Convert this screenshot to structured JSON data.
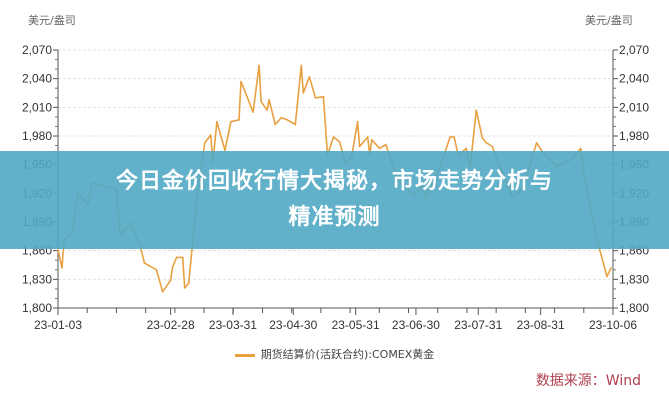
{
  "banner": {
    "title_line1": "今日金价回收行情大揭秘，市场走势分析与",
    "title_line2": "精准预测"
  },
  "source": "数据来源：Wind",
  "colors": {
    "line": "#e8a040",
    "banner": "#50a8c4",
    "source": "#b0404e"
  },
  "chart_data": {
    "type": "line",
    "title": "",
    "ylabel_left": "美元/盎司",
    "ylabel_right": "美元/盎司",
    "ylim": [
      1800,
      2070
    ],
    "yticks": [
      "1,800",
      "1,830",
      "1,860",
      "1,890",
      "1,920",
      "1,950",
      "1,980",
      "2,010",
      "2,040",
      "2,070"
    ],
    "xlim": [
      "2023-01-03",
      "2023-10-06"
    ],
    "xticks": [
      "23-01-03",
      "23-02-28",
      "23-03-31",
      "23-04-30",
      "23-05-31",
      "23-06-30",
      "23-07-31",
      "23-08-31",
      "23-10-06"
    ],
    "xtick_dates": [
      "2023-01-03",
      "2023-02-28",
      "2023-03-31",
      "2023-04-30",
      "2023-05-31",
      "2023-06-30",
      "2023-07-31",
      "2023-08-31",
      "2023-10-06"
    ],
    "grid": true,
    "legend_position": "bottom",
    "series": [
      {
        "name": "期货结算价(活跃合约):COMEX黄金",
        "x": [
          "2023-01-03",
          "2023-01-05",
          "2023-01-06",
          "2023-01-10",
          "2023-01-13",
          "2023-01-18",
          "2023-01-20",
          "2023-02-01",
          "2023-02-03",
          "2023-02-08",
          "2023-02-13",
          "2023-02-15",
          "2023-02-21",
          "2023-02-24",
          "2023-02-28",
          "2023-03-01",
          "2023-03-03",
          "2023-03-06",
          "2023-03-07",
          "2023-03-09",
          "2023-03-13",
          "2023-03-17",
          "2023-03-20",
          "2023-03-21",
          "2023-03-23",
          "2023-03-27",
          "2023-03-30",
          "2023-04-03",
          "2023-04-04",
          "2023-04-10",
          "2023-04-13",
          "2023-04-14",
          "2023-04-17",
          "2023-04-18",
          "2023-04-21",
          "2023-04-24",
          "2023-04-27",
          "2023-05-01",
          "2023-05-04",
          "2023-05-05",
          "2023-05-08",
          "2023-05-11",
          "2023-05-15",
          "2023-05-17",
          "2023-05-20",
          "2023-05-23",
          "2023-05-26",
          "2023-05-29",
          "2023-06-01",
          "2023-06-02",
          "2023-06-06",
          "2023-06-07",
          "2023-06-08",
          "2023-06-12",
          "2023-06-15",
          "2023-06-21",
          "2023-06-23",
          "2023-06-29",
          "2023-07-03",
          "2023-07-05",
          "2023-07-12",
          "2023-07-17",
          "2023-07-19",
          "2023-07-21",
          "2023-07-25",
          "2023-07-27",
          "2023-07-30",
          "2023-08-02",
          "2023-08-04",
          "2023-08-07",
          "2023-08-11",
          "2023-08-17",
          "2023-08-22",
          "2023-08-29",
          "2023-09-01",
          "2023-09-08",
          "2023-09-15",
          "2023-09-20",
          "2023-09-21",
          "2023-09-26",
          "2023-09-29",
          "2023-10-03",
          "2023-10-05"
        ],
        "values": [
          1861,
          1842,
          1871,
          1878,
          1920,
          1908,
          1931,
          1924,
          1876,
          1889,
          1864,
          1847,
          1840,
          1817,
          1829,
          1843,
          1853,
          1853,
          1821,
          1826,
          1913,
          1973,
          1981,
          1952,
          1995,
          1965,
          1995,
          1997,
          2037,
          2005,
          2054,
          2016,
          2007,
          2018,
          1992,
          1999,
          1997,
          1992,
          2054,
          2025,
          2042,
          2020,
          2021,
          1960,
          1979,
          1974,
          1952,
          1958,
          1995,
          1969,
          1979,
          1960,
          1976,
          1967,
          1971,
          1934,
          1929,
          1918,
          1927,
          1916,
          1948,
          1979,
          1979,
          1960,
          1967,
          1948,
          2007,
          1978,
          1973,
          1969,
          1947,
          1916,
          1924,
          1973,
          1963,
          1948,
          1955,
          1967,
          1947,
          1892,
          1864,
          1833,
          1842
        ]
      }
    ]
  }
}
